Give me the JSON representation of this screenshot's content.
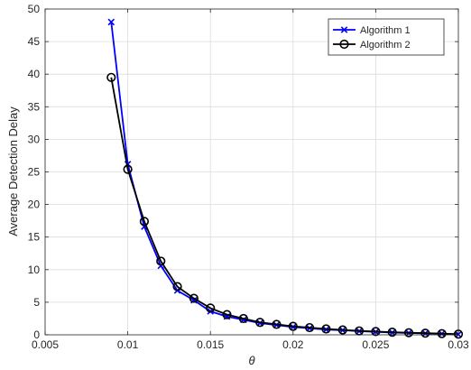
{
  "chart_data": {
    "type": "line",
    "title": "",
    "xlabel": "θ",
    "ylabel": "Average Detection Delay",
    "xlim": [
      0.005,
      0.03
    ],
    "ylim": [
      0,
      50
    ],
    "xticks": [
      0.005,
      0.01,
      0.015,
      0.02,
      0.025,
      0.03
    ],
    "xtick_labels": [
      "0.005",
      "0.01",
      "0.015",
      "0.02",
      "0.025",
      "0.03"
    ],
    "yticks": [
      0,
      5,
      10,
      15,
      20,
      25,
      30,
      35,
      40,
      45,
      50
    ],
    "ytick_labels": [
      "0",
      "5",
      "10",
      "15",
      "20",
      "25",
      "30",
      "35",
      "40",
      "45",
      "50"
    ],
    "grid": true,
    "legend_position": "top-right",
    "x": [
      0.009,
      0.01,
      0.011,
      0.012,
      0.013,
      0.014,
      0.015,
      0.016,
      0.017,
      0.018,
      0.019,
      0.02,
      0.021,
      0.022,
      0.023,
      0.024,
      0.025,
      0.026,
      0.027,
      0.028,
      0.029,
      0.03
    ],
    "series": [
      {
        "name": "Algorithm 1",
        "color": "#0000ff",
        "marker": "x",
        "values": [
          48.0,
          26.2,
          16.6,
          10.6,
          6.8,
          5.3,
          3.6,
          2.8,
          2.3,
          1.8,
          1.5,
          1.2,
          1.0,
          0.8,
          0.7,
          0.55,
          0.45,
          0.35,
          0.28,
          0.22,
          0.15,
          0.05
        ]
      },
      {
        "name": "Algorithm 2",
        "color": "#000000",
        "marker": "circle",
        "values": [
          39.5,
          25.4,
          17.4,
          11.3,
          7.4,
          5.6,
          4.1,
          3.1,
          2.5,
          1.9,
          1.6,
          1.3,
          1.1,
          0.9,
          0.75,
          0.6,
          0.5,
          0.4,
          0.32,
          0.25,
          0.18,
          0.1
        ]
      }
    ]
  }
}
